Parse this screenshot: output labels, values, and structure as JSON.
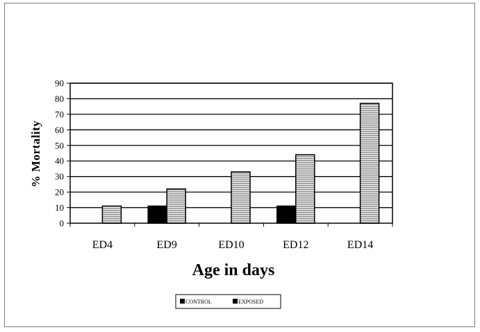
{
  "chart_data": {
    "type": "bar",
    "title": "",
    "xlabel": "Age in days",
    "ylabel": "% Mortality",
    "categories": [
      "ED4",
      "ED9",
      "ED10",
      "ED12",
      "ED14"
    ],
    "series": [
      {
        "name": "CONTROL",
        "values": [
          0,
          11,
          0,
          11,
          0
        ],
        "color": "#000000",
        "pattern": "solid"
      },
      {
        "name": "EXPOSED",
        "values": [
          11,
          22,
          33,
          44,
          77
        ],
        "color": "#c8c8c8",
        "pattern": "horizontal-stripes"
      }
    ],
    "ylim": [
      0,
      90
    ],
    "yticks": [
      0,
      10,
      20,
      30,
      40,
      50,
      60,
      70,
      80,
      90
    ],
    "grid": true,
    "legend_position": "bottom-center"
  }
}
